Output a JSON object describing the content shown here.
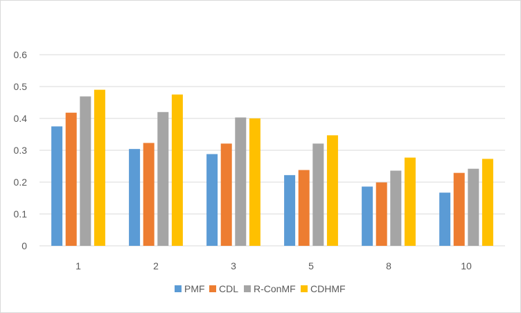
{
  "chart_data": {
    "type": "bar",
    "title": "",
    "xlabel": "",
    "ylabel": "",
    "categories": [
      "1",
      "2",
      "3",
      "5",
      "8",
      "10"
    ],
    "y_ticks": [
      "0",
      "0.1",
      "0.2",
      "0.3",
      "0.4",
      "0.5",
      "0.6"
    ],
    "ylim": [
      0,
      0.6
    ],
    "grid": "horizontal",
    "legend_position": "bottom",
    "series": [
      {
        "name": "PMF",
        "color": "#5b9bd5",
        "values": [
          0.375,
          0.304,
          0.288,
          0.222,
          0.186,
          0.167
        ]
      },
      {
        "name": "CDL",
        "color": "#ed7d31",
        "values": [
          0.418,
          0.323,
          0.321,
          0.238,
          0.199,
          0.229
        ]
      },
      {
        "name": "R-ConMF",
        "color": "#a5a5a5",
        "values": [
          0.469,
          0.42,
          0.403,
          0.321,
          0.236,
          0.242
        ]
      },
      {
        "name": "CDHMF",
        "color": "#ffc000",
        "values": [
          0.49,
          0.475,
          0.4,
          0.347,
          0.277,
          0.273
        ]
      }
    ]
  }
}
